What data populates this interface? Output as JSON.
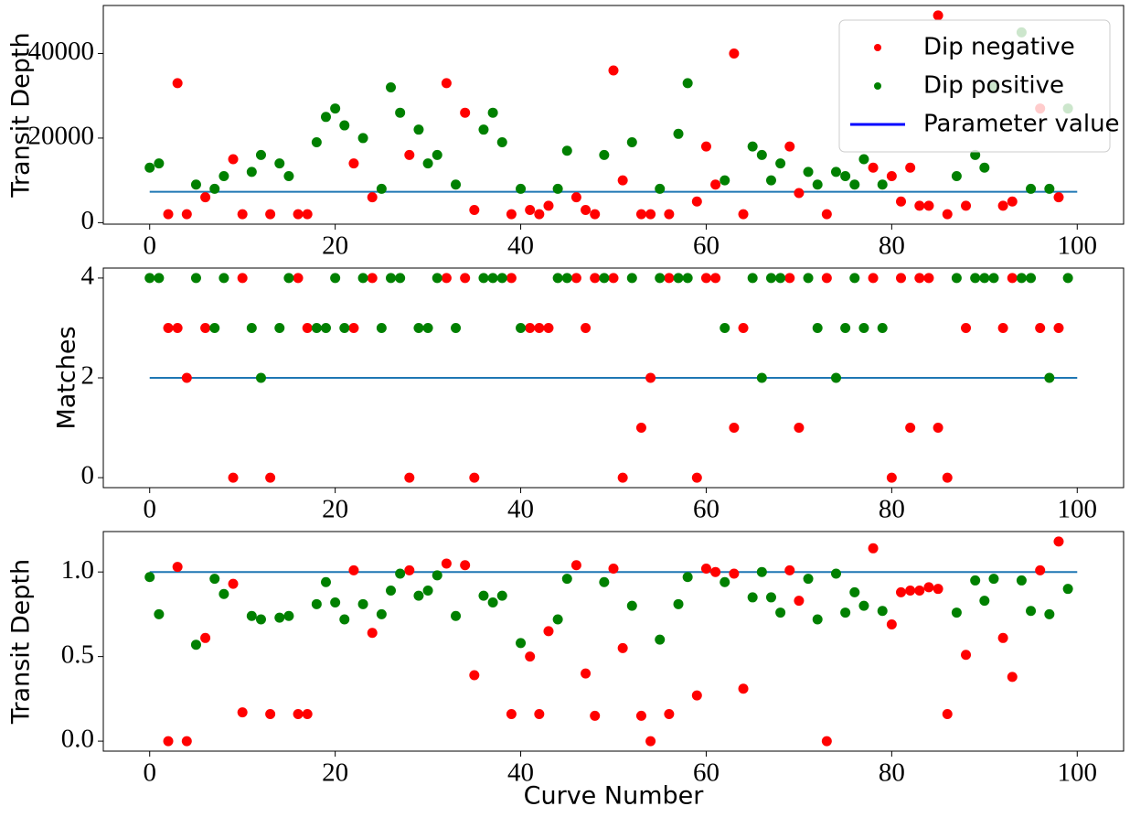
{
  "chart_data": [
    {
      "type": "scatter",
      "ylabel": "Transit Depth",
      "xlim": [
        -5,
        105
      ],
      "xticks": [
        0,
        20,
        40,
        60,
        80,
        100
      ],
      "ylim": [
        -350,
        51350
      ],
      "yticks": [
        0,
        20000,
        40000
      ],
      "legend": "upper right",
      "series": [
        {
          "name": "Parameter value",
          "type": "line",
          "color": "#1f77b4",
          "legend_color": "#0000ff",
          "x": [
            0,
            100
          ],
          "values": [
            7300,
            7300
          ]
        },
        {
          "name": "Dip negative",
          "color": "#ff0000",
          "x": [
            2,
            3,
            4,
            6,
            9,
            10,
            13,
            16,
            17,
            22,
            24,
            28,
            32,
            34,
            35,
            39,
            41,
            42,
            43,
            46,
            47,
            48,
            50,
            51,
            53,
            54,
            56,
            59,
            60,
            61,
            63,
            64,
            69,
            70,
            73,
            78,
            80,
            81,
            82,
            83,
            84,
            85,
            86,
            88,
            92,
            93,
            96,
            98
          ],
          "values": [
            2000,
            33000,
            2000,
            6000,
            15000,
            2000,
            2000,
            2000,
            2000,
            14000,
            6000,
            16000,
            33000,
            26000,
            3000,
            2000,
            3000,
            2000,
            4000,
            6000,
            3000,
            2000,
            36000,
            10000,
            2000,
            2000,
            2000,
            5000,
            18000,
            9000,
            40000,
            2000,
            18000,
            7000,
            2000,
            13000,
            11000,
            5000,
            13000,
            4000,
            4000,
            49000,
            2000,
            4000,
            4000,
            5000,
            27000,
            6000
          ]
        },
        {
          "name": "Dip positive",
          "color": "#008000",
          "x": [
            0,
            1,
            5,
            7,
            8,
            11,
            12,
            14,
            15,
            18,
            19,
            20,
            21,
            23,
            25,
            26,
            27,
            29,
            30,
            31,
            33,
            36,
            37,
            38,
            40,
            44,
            45,
            49,
            52,
            55,
            57,
            58,
            62,
            65,
            66,
            67,
            68,
            71,
            72,
            74,
            75,
            76,
            77,
            79,
            87,
            89,
            90,
            91,
            94,
            95,
            97,
            99
          ],
          "values": [
            13000,
            14000,
            9000,
            8000,
            11000,
            12000,
            16000,
            14000,
            11000,
            19000,
            25000,
            27000,
            23000,
            20000,
            8000,
            32000,
            26000,
            22000,
            14000,
            16000,
            9000,
            22000,
            26000,
            19000,
            8000,
            8000,
            17000,
            16000,
            19000,
            8000,
            21000,
            33000,
            10000,
            18000,
            16000,
            10000,
            14000,
            12000,
            9000,
            12000,
            11000,
            9000,
            15000,
            9000,
            11000,
            16000,
            13000,
            32000,
            45000,
            8000,
            8000,
            27000
          ]
        }
      ]
    },
    {
      "type": "scatter",
      "ylabel": "Matches",
      "xlim": [
        -5,
        105
      ],
      "xticks": [
        0,
        20,
        40,
        60,
        80,
        100
      ],
      "ylim": [
        -0.2,
        4.2
      ],
      "yticks": [
        0,
        2,
        4
      ],
      "series": [
        {
          "type": "line",
          "color": "#1f77b4",
          "x": [
            0,
            100
          ],
          "values": [
            2,
            2
          ]
        },
        {
          "color": "#ff0000",
          "x": [
            2,
            3,
            4,
            6,
            9,
            10,
            13,
            16,
            17,
            22,
            24,
            28,
            32,
            34,
            35,
            39,
            41,
            42,
            43,
            46,
            47,
            48,
            50,
            51,
            53,
            54,
            56,
            59,
            60,
            61,
            63,
            64,
            69,
            70,
            73,
            78,
            80,
            81,
            82,
            83,
            84,
            85,
            86,
            88,
            92,
            93,
            96,
            98
          ],
          "values": [
            3,
            3,
            2,
            3,
            0,
            4,
            0,
            4,
            3,
            3,
            4,
            0,
            4,
            4,
            0,
            4,
            3,
            3,
            3,
            4,
            3,
            4,
            4,
            0,
            1,
            2,
            4,
            0,
            4,
            4,
            1,
            3,
            4,
            1,
            4,
            4,
            0,
            4,
            1,
            4,
            4,
            1,
            0,
            3,
            3,
            4,
            3,
            3
          ]
        },
        {
          "color": "#008000",
          "x": [
            0,
            1,
            5,
            7,
            8,
            11,
            12,
            14,
            15,
            18,
            19,
            20,
            21,
            23,
            25,
            26,
            27,
            29,
            30,
            31,
            33,
            36,
            37,
            38,
            40,
            44,
            45,
            49,
            52,
            55,
            57,
            58,
            62,
            65,
            66,
            67,
            68,
            71,
            72,
            74,
            75,
            76,
            77,
            79,
            87,
            89,
            90,
            91,
            94,
            95,
            97,
            99
          ],
          "values": [
            4,
            4,
            4,
            3,
            4,
            3,
            2,
            3,
            4,
            3,
            3,
            4,
            3,
            4,
            3,
            4,
            4,
            3,
            3,
            4,
            3,
            4,
            4,
            4,
            3,
            4,
            4,
            4,
            4,
            4,
            4,
            4,
            3,
            4,
            2,
            4,
            4,
            4,
            3,
            2,
            3,
            4,
            3,
            3,
            4,
            4,
            4,
            4,
            4,
            4,
            2,
            4
          ]
        }
      ]
    },
    {
      "type": "scatter",
      "ylabel": "Transit Depth",
      "xlabel": "Curve Number",
      "xlim": [
        -5,
        105
      ],
      "xticks": [
        0,
        20,
        40,
        60,
        80,
        100
      ],
      "ylim": [
        -0.059,
        1.239
      ],
      "yticks": [
        {
          "value": 0,
          "label": "0.0"
        },
        {
          "value": 0.5,
          "label": "0.5"
        },
        {
          "value": 1,
          "label": "1.0"
        }
      ],
      "series": [
        {
          "type": "line",
          "color": "#1f77b4",
          "x": [
            0,
            100
          ],
          "values": [
            1,
            1
          ]
        },
        {
          "color": "#ff0000",
          "x": [
            2,
            3,
            4,
            6,
            9,
            10,
            13,
            16,
            17,
            22,
            24,
            28,
            32,
            34,
            35,
            39,
            41,
            42,
            43,
            46,
            47,
            48,
            50,
            51,
            53,
            54,
            56,
            59,
            60,
            61,
            63,
            64,
            69,
            70,
            73,
            78,
            80,
            81,
            82,
            83,
            84,
            85,
            86,
            88,
            92,
            93,
            96,
            98
          ],
          "values": [
            0,
            1.03,
            0,
            0.61,
            0.93,
            0.17,
            0.16,
            0.16,
            0.16,
            1.01,
            0.64,
            1.01,
            1.05,
            1.04,
            0.39,
            0.16,
            0.5,
            0.16,
            0.65,
            1.04,
            0.4,
            0.15,
            1.02,
            0.55,
            0.15,
            0,
            0.16,
            0.27,
            1.02,
            1.0,
            0.99,
            0.31,
            1.01,
            0.83,
            0,
            1.14,
            0.69,
            0.88,
            0.89,
            0.89,
            0.91,
            0.9,
            0.16,
            0.51,
            0.61,
            0.38,
            1.01,
            1.18
          ]
        },
        {
          "color": "#008000",
          "x": [
            0,
            1,
            5,
            7,
            8,
            11,
            12,
            14,
            15,
            18,
            19,
            20,
            21,
            23,
            25,
            26,
            27,
            29,
            30,
            31,
            33,
            36,
            37,
            38,
            40,
            44,
            45,
            49,
            52,
            55,
            57,
            58,
            62,
            65,
            66,
            67,
            68,
            71,
            72,
            74,
            75,
            76,
            77,
            79,
            87,
            89,
            90,
            91,
            94,
            95,
            97,
            99
          ],
          "values": [
            0.97,
            0.75,
            0.57,
            0.96,
            0.87,
            0.74,
            0.72,
            0.73,
            0.74,
            0.81,
            0.94,
            0.82,
            0.72,
            0.81,
            0.75,
            0.89,
            0.99,
            0.86,
            0.89,
            0.98,
            0.74,
            0.86,
            0.82,
            0.86,
            0.58,
            0.72,
            0.96,
            0.94,
            0.8,
            0.6,
            0.81,
            0.97,
            0.94,
            0.85,
            1.0,
            0.85,
            0.76,
            0.96,
            0.72,
            0.99,
            0.76,
            0.88,
            0.8,
            0.77,
            0.76,
            0.95,
            0.83,
            0.96,
            0.95,
            0.77,
            0.75,
            0.9
          ]
        }
      ]
    }
  ]
}
